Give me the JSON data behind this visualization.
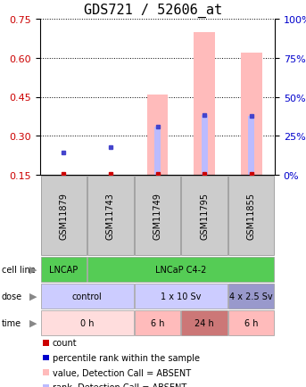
{
  "title": "GDS721 / 52606_at",
  "samples": [
    "GSM11879",
    "GSM11743",
    "GSM11749",
    "GSM11795",
    "GSM11855"
  ],
  "ylim_left": [
    0.15,
    0.75
  ],
  "ylim_right": [
    0,
    100
  ],
  "yticks_left": [
    0.15,
    0.3,
    0.45,
    0.6,
    0.75
  ],
  "yticks_right": [
    0,
    25,
    50,
    75,
    100
  ],
  "pink_bar_values": [
    null,
    null,
    0.46,
    0.7,
    0.62
  ],
  "red_dot_values": [
    0.155,
    0.155,
    0.155,
    0.155,
    0.155
  ],
  "blue_dot_values": [
    0.235,
    0.255,
    0.335,
    0.38,
    0.375
  ],
  "light_blue_bar_values": [
    null,
    null,
    0.335,
    0.38,
    0.375
  ],
  "row_data": [
    {
      "label": "cell line",
      "items": [
        {
          "text": "LNCAP",
          "span": [
            0,
            1
          ],
          "color": "#55cc55"
        },
        {
          "text": "LNCaP C4-2",
          "span": [
            1,
            5
          ],
          "color": "#55cc55"
        }
      ]
    },
    {
      "label": "dose",
      "items": [
        {
          "text": "control",
          "span": [
            0,
            2
          ],
          "color": "#ccccff"
        },
        {
          "text": "1 x 10 Sv",
          "span": [
            2,
            4
          ],
          "color": "#ccccff"
        },
        {
          "text": "4 x 2.5 Sv",
          "span": [
            4,
            5
          ],
          "color": "#9999cc"
        }
      ]
    },
    {
      "label": "time",
      "items": [
        {
          "text": "0 h",
          "span": [
            0,
            2
          ],
          "color": "#ffdddd"
        },
        {
          "text": "6 h",
          "span": [
            2,
            3
          ],
          "color": "#ffbbbb"
        },
        {
          "text": "24 h",
          "span": [
            3,
            4
          ],
          "color": "#cc7777"
        },
        {
          "text": "6 h",
          "span": [
            4,
            5
          ],
          "color": "#ffbbbb"
        }
      ]
    }
  ],
  "legend_items": [
    {
      "color": "#cc0000",
      "label": "count"
    },
    {
      "color": "#0000cc",
      "label": "percentile rank within the sample"
    },
    {
      "color": "#ffbbbb",
      "label": "value, Detection Call = ABSENT"
    },
    {
      "color": "#bbbbff",
      "label": "rank, Detection Call = ABSENT"
    }
  ],
  "title_fontsize": 11,
  "tick_fontsize": 8,
  "sample_fontsize": 7,
  "annot_fontsize": 7,
  "legend_fontsize": 7
}
